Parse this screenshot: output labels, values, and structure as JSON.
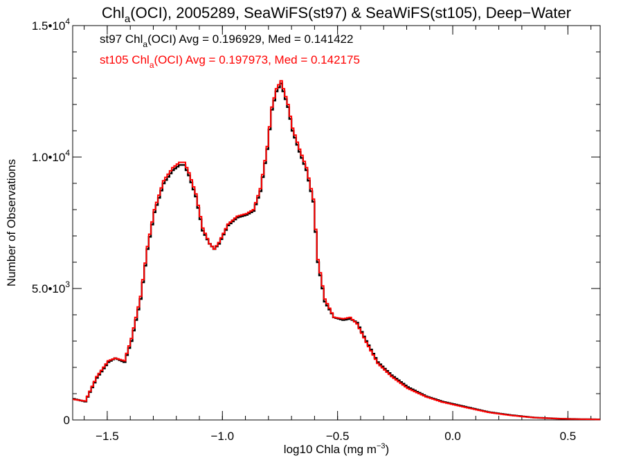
{
  "chart_data": {
    "type": "line",
    "step": true,
    "title": "Chl_a(OCI), 2005289, SeaWiFS(st97) & SeaWiFS(st105), Deep−Water",
    "title_parts": {
      "pre": "Chl",
      "sub": "a",
      "post": "(OCI), 2005289, SeaWiFS(st97) & SeaWiFS(st105), Deep−Water"
    },
    "xlabel": "log10 Chla (mg m⁻³)",
    "xlabel_parts": {
      "pre": "log10 Chla (mg m",
      "sup": "−3",
      "post": ")"
    },
    "ylabel": "Number of Observations",
    "xlim": [
      -1.65,
      0.64
    ],
    "ylim": [
      0,
      15000
    ],
    "x_ticks": [
      {
        "value": -1.5,
        "label": "−1.5"
      },
      {
        "value": -1.0,
        "label": "−1.0"
      },
      {
        "value": -0.5,
        "label": "−0.5"
      },
      {
        "value": 0.0,
        "label": "0.0"
      },
      {
        "value": 0.5,
        "label": "0.5"
      }
    ],
    "y_ticks": [
      {
        "value": 0,
        "mantissa": "0",
        "exp": ""
      },
      {
        "value": 5000,
        "mantissa": "5.0•10",
        "exp": "3"
      },
      {
        "value": 10000,
        "mantissa": "1.0•10",
        "exp": "4"
      },
      {
        "value": 15000,
        "mantissa": "1.5•10",
        "exp": "4"
      }
    ],
    "x_minor_step": 0.1,
    "y_minor_step": 1000,
    "legend_position": "top-left",
    "legend": [
      {
        "pre": "st97 Chl",
        "sub": "a",
        "post": "(OCI) Avg = 0.196929, Med = 0.141422",
        "color": "#000000"
      },
      {
        "pre": "st105 Chl",
        "sub": "a",
        "post": "(OCI) Avg = 0.197973, Med = 0.142175",
        "color": "#ff0000"
      }
    ],
    "series": [
      {
        "name": "st97",
        "color": "#000000",
        "x": [
          -1.65,
          -1.6,
          -1.55,
          -1.5,
          -1.47,
          -1.43,
          -1.4,
          -1.36,
          -1.33,
          -1.3,
          -1.26,
          -1.22,
          -1.19,
          -1.17,
          -1.15,
          -1.12,
          -1.09,
          -1.06,
          -1.04,
          -1.02,
          -0.98,
          -0.94,
          -0.9,
          -0.87,
          -0.84,
          -0.81,
          -0.79,
          -0.77,
          -0.75,
          -0.72,
          -0.7,
          -0.67,
          -0.64,
          -0.61,
          -0.59,
          -0.56,
          -0.52,
          -0.48,
          -0.45,
          -0.42,
          -0.38,
          -0.33,
          -0.27,
          -0.2,
          -0.12,
          -0.05,
          0.05,
          0.15,
          0.25,
          0.35,
          0.45,
          0.55,
          0.64
        ],
        "y": [
          800,
          700,
          1600,
          2200,
          2350,
          2200,
          3000,
          4600,
          6500,
          7900,
          9000,
          9500,
          9700,
          9700,
          9300,
          8500,
          7200,
          6700,
          6500,
          6700,
          7400,
          7700,
          7800,
          7950,
          8700,
          10300,
          11800,
          12500,
          12800,
          11900,
          11000,
          10200,
          9500,
          8300,
          6000,
          4500,
          3900,
          3800,
          3850,
          3700,
          3000,
          2200,
          1700,
          1250,
          900,
          700,
          500,
          300,
          180,
          90,
          50,
          30,
          20
        ]
      },
      {
        "name": "st105",
        "color": "#ff0000",
        "x": [
          -1.65,
          -1.6,
          -1.55,
          -1.5,
          -1.47,
          -1.43,
          -1.4,
          -1.36,
          -1.33,
          -1.3,
          -1.26,
          -1.22,
          -1.19,
          -1.17,
          -1.15,
          -1.12,
          -1.09,
          -1.06,
          -1.04,
          -1.02,
          -0.98,
          -0.94,
          -0.9,
          -0.87,
          -0.84,
          -0.81,
          -0.79,
          -0.77,
          -0.75,
          -0.72,
          -0.7,
          -0.67,
          -0.64,
          -0.61,
          -0.59,
          -0.56,
          -0.52,
          -0.48,
          -0.45,
          -0.42,
          -0.38,
          -0.33,
          -0.27,
          -0.2,
          -0.12,
          -0.05,
          0.05,
          0.15,
          0.25,
          0.35,
          0.45,
          0.55,
          0.64
        ],
        "y": [
          780,
          720,
          1650,
          2250,
          2350,
          2250,
          3100,
          4700,
          6600,
          8000,
          9100,
          9600,
          9800,
          9800,
          9400,
          8600,
          7300,
          6700,
          6500,
          6750,
          7450,
          7750,
          7850,
          8000,
          8800,
          10400,
          11900,
          12600,
          12900,
          12000,
          11100,
          10300,
          9600,
          8400,
          6100,
          4600,
          3900,
          3850,
          3900,
          3650,
          2950,
          2150,
          1650,
          1200,
          880,
          680,
          480,
          290,
          170,
          90,
          50,
          30,
          20
        ]
      }
    ]
  }
}
